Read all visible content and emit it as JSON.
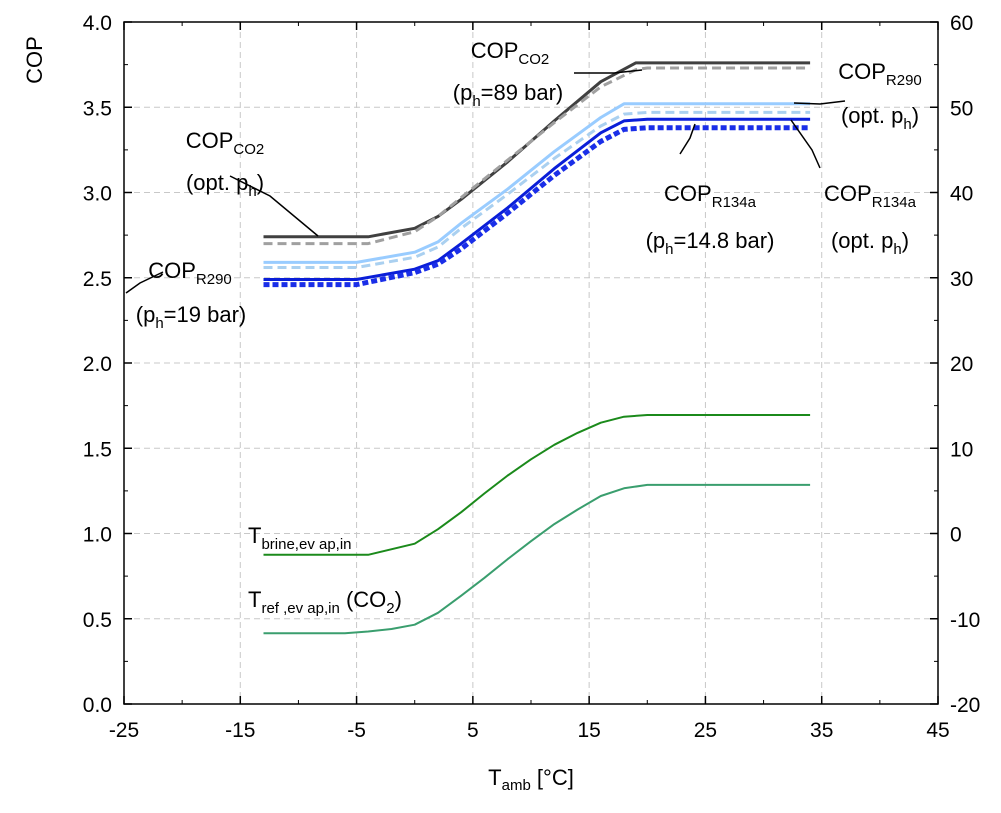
{
  "chart_data": {
    "type": "line",
    "xlabel": {
      "main": "T",
      "sub": "amb",
      "rest": " [°C]"
    },
    "ylabel": "COP",
    "x_ticks": [
      "-25",
      "-15",
      "-5",
      "5",
      "15",
      "25",
      "35",
      "45"
    ],
    "x_tick_values": [
      -25,
      -15,
      -5,
      5,
      15,
      25,
      35,
      45
    ],
    "y_ticks": [
      "0.0",
      "0.5",
      "1.0",
      "1.5",
      "2.0",
      "2.5",
      "3.0",
      "3.5",
      "4.0"
    ],
    "y_tick_values": [
      0,
      0.5,
      1,
      1.5,
      2,
      2.5,
      3,
      3.5,
      4
    ],
    "y2_ticks": [
      "-20",
      "-10",
      "0",
      "10",
      "20",
      "30",
      "40",
      "50",
      "60"
    ],
    "y2_tick_values": [
      -20,
      -10,
      0,
      10,
      20,
      30,
      40,
      50,
      60
    ],
    "xlim": [
      -25,
      45
    ],
    "ylim": [
      0,
      4
    ],
    "y2lim": [
      -20,
      60
    ],
    "grid": true,
    "series": [
      {
        "axis": "left",
        "color": "#404040",
        "dash": "solid",
        "width": 3,
        "x": [
          -13,
          -4,
          0,
          2,
          4,
          8,
          12,
          16,
          19,
          20,
          34
        ],
        "y": [
          2.74,
          2.74,
          2.79,
          2.86,
          2.96,
          3.18,
          3.42,
          3.65,
          3.76,
          3.76,
          3.76
        ]
      },
      {
        "axis": "left",
        "color": "#a0a0a0",
        "dash": "dashed",
        "width": 3,
        "x": [
          -13,
          -4,
          0,
          2,
          4,
          8,
          12,
          16,
          19,
          20,
          34
        ],
        "y": [
          2.7,
          2.7,
          2.77,
          2.86,
          2.97,
          3.19,
          3.41,
          3.62,
          3.72,
          3.73,
          3.73
        ]
      },
      {
        "axis": "left",
        "color": "#99ccff",
        "dash": "solid",
        "width": 3,
        "x": [
          -13,
          -5,
          0,
          2,
          4,
          8,
          12,
          16,
          18,
          20,
          34
        ],
        "y": [
          2.59,
          2.59,
          2.65,
          2.71,
          2.82,
          3.02,
          3.24,
          3.44,
          3.52,
          3.52,
          3.52
        ]
      },
      {
        "axis": "left",
        "color": "#aad0f0",
        "dash": "dashed",
        "width": 3,
        "x": [
          -13,
          -5,
          0,
          2,
          4,
          8,
          12,
          16,
          18,
          20,
          34
        ],
        "y": [
          2.56,
          2.56,
          2.62,
          2.68,
          2.79,
          2.99,
          3.2,
          3.39,
          3.46,
          3.47,
          3.47
        ]
      },
      {
        "axis": "left",
        "color": "#0a1ed8",
        "dash": "solid",
        "width": 3,
        "x": [
          -13,
          -5,
          0,
          2,
          4,
          8,
          12,
          16,
          18,
          20,
          34
        ],
        "y": [
          2.49,
          2.49,
          2.55,
          2.6,
          2.7,
          2.91,
          3.14,
          3.35,
          3.42,
          3.43,
          3.43
        ]
      },
      {
        "axis": "left",
        "color": "#1a2ee8",
        "dash": "dotted",
        "width": 5,
        "x": [
          -13,
          -5,
          0,
          2,
          4,
          8,
          12,
          16,
          18,
          20,
          34
        ],
        "y": [
          2.46,
          2.46,
          2.53,
          2.58,
          2.67,
          2.88,
          3.1,
          3.3,
          3.37,
          3.38,
          3.38
        ]
      },
      {
        "axis": "right",
        "color": "#1b8a1b",
        "dash": "solid",
        "width": 2,
        "x": [
          -13,
          -4,
          0,
          2,
          4,
          6,
          8,
          10,
          12,
          14,
          16,
          18,
          20,
          34
        ],
        "y": [
          -2.5,
          -2.5,
          -1.2,
          0.5,
          2.5,
          4.7,
          6.8,
          8.7,
          10.4,
          11.8,
          13.0,
          13.7,
          13.9,
          13.9
        ]
      },
      {
        "axis": "right",
        "color": "#3a9e6e",
        "dash": "solid",
        "width": 2,
        "x": [
          -13,
          -6,
          -4,
          -2,
          0,
          2,
          4,
          6,
          8,
          10,
          12,
          14,
          16,
          18,
          20,
          34
        ],
        "y": [
          -11.7,
          -11.7,
          -11.5,
          -11.2,
          -10.7,
          -9.3,
          -7.3,
          -5.2,
          -3.0,
          -0.9,
          1.1,
          2.8,
          4.4,
          5.3,
          5.7,
          5.7
        ]
      }
    ],
    "annotations": [
      {
        "id": "cop-co2-89",
        "line1": [
          {
            "t": "COP"
          },
          {
            "t": "CO2",
            "sub": true
          }
        ],
        "line2": [
          {
            "t": "(p"
          },
          {
            "t": "h",
            "sub": true
          },
          {
            "t": "=89 bar)"
          }
        ]
      },
      {
        "id": "cop-r290-opt",
        "line1": [
          {
            "t": "COP"
          },
          {
            "t": "R290",
            "sub": true
          }
        ],
        "line2": [
          {
            "t": "(opt. p"
          },
          {
            "t": "h",
            "sub": true
          },
          {
            "t": ")"
          }
        ]
      },
      {
        "id": "cop-co2-opt",
        "line1": [
          {
            "t": "COP"
          },
          {
            "t": "CO2",
            "sub": true
          }
        ],
        "line2": [
          {
            "t": "(opt. p"
          },
          {
            "t": "h",
            "sub": true
          },
          {
            "t": ")"
          }
        ]
      },
      {
        "id": "cop-r134a-148",
        "line1": [
          {
            "t": "COP"
          },
          {
            "t": "R134a",
            "sub": true
          }
        ],
        "line2": [
          {
            "t": "(p"
          },
          {
            "t": "h",
            "sub": true
          },
          {
            "t": "=14.8 bar)"
          }
        ]
      },
      {
        "id": "cop-r134a-opt",
        "line1": [
          {
            "t": "COP"
          },
          {
            "t": "R134a",
            "sub": true
          }
        ],
        "line2": [
          {
            "t": "(opt. p"
          },
          {
            "t": "h",
            "sub": true
          },
          {
            "t": ")"
          }
        ]
      },
      {
        "id": "cop-r290-19",
        "line1": [
          {
            "t": "COP"
          },
          {
            "t": "R290",
            "sub": true
          }
        ],
        "line2": [
          {
            "t": "(p"
          },
          {
            "t": "h",
            "sub": true
          },
          {
            "t": "=19 bar)"
          }
        ]
      },
      {
        "id": "t-brine",
        "line1": [
          {
            "t": "T"
          },
          {
            "t": "brine,ev ap,in",
            "sub": true
          }
        ]
      },
      {
        "id": "t-ref",
        "line1": [
          {
            "t": "T"
          },
          {
            "t": "ref ,ev ap,in",
            "sub": true
          },
          {
            "t": " (CO"
          },
          {
            "t": "2",
            "sub": true
          },
          {
            "t": ")"
          }
        ]
      }
    ]
  }
}
